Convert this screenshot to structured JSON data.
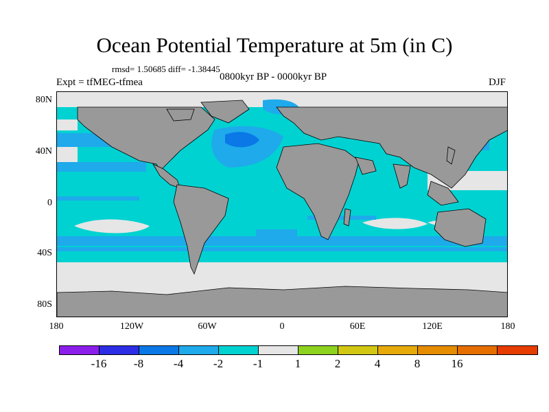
{
  "title": "Ocean Potential Temperature at 5m (in C)",
  "stats": "rmsd= 1.50685 diff= -1.38445",
  "experiment": "Expt = tfMEG-tfmea",
  "period": "0800kyr BP - 0000kyr BP",
  "season": "DJF",
  "axes": {
    "y_ticks": [
      "80N",
      "40N",
      "0",
      "40S",
      "80S"
    ],
    "x_ticks": [
      "180",
      "120W",
      "60W",
      "0",
      "60E",
      "120E",
      "180"
    ]
  },
  "colorbar": {
    "colors": [
      "#8c1eeb",
      "#2d2de6",
      "#0a78e6",
      "#1eaaeb",
      "#00d2d2",
      "#e6e6e6",
      "#8cd21e",
      "#d2c814",
      "#e6aa0a",
      "#e68c00",
      "#e66e00",
      "#e63c00"
    ],
    "labels": [
      "-16",
      "-8",
      "-4",
      "-2",
      "-1",
      "1",
      "2",
      "4",
      "8",
      "16"
    ]
  },
  "legend_colors": {
    "land": "#999999",
    "near_zero": "#e6e6e6",
    "cool_1_2": "#00d2d2",
    "cool_2_4": "#1eaaeb",
    "cool_4_8": "#0a78e6"
  }
}
